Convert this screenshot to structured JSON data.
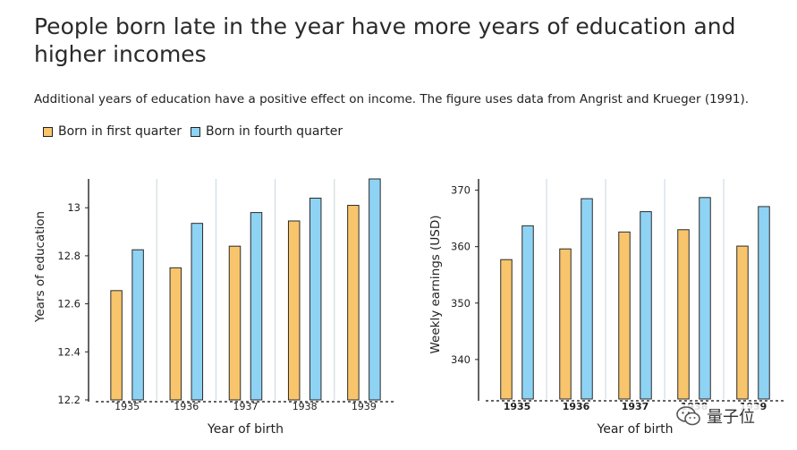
{
  "title": "People born late in the year have more years of education and higher incomes",
  "subtitle": "Additional years of education have a positive effect on income. The figure uses data from Angrist and Krueger (1991).",
  "legend": [
    {
      "label": "Born in first quarter",
      "color": "#f8c56c"
    },
    {
      "label": "Born in fourth quarter",
      "color": "#8fd3f4"
    }
  ],
  "watermark": {
    "text": "量子位",
    "icon": "wechat-icon"
  },
  "chart_data": [
    {
      "type": "bar",
      "categories": [
        "1935",
        "1936",
        "1937",
        "1938",
        "1939"
      ],
      "series": [
        {
          "name": "Born in first quarter",
          "values": [
            12.655,
            12.75,
            12.84,
            12.945,
            13.01
          ]
        },
        {
          "name": "Born in fourth quarter",
          "values": [
            12.825,
            12.935,
            12.98,
            13.04,
            13.12
          ]
        }
      ],
      "xlabel": "Year of birth",
      "ylabel": "Years of education",
      "ylim": [
        12.2,
        13.12
      ],
      "yticks": [
        "12.2",
        "12.4",
        "12.6",
        "12.8",
        "13"
      ],
      "grid": "vertical separators"
    },
    {
      "type": "bar",
      "categories": [
        "1935",
        "1936",
        "1937",
        "1938",
        "1939"
      ],
      "series": [
        {
          "name": "Born in first quarter",
          "values": [
            357.7,
            359.6,
            362.6,
            363.0,
            360.1
          ]
        },
        {
          "name": "Born in fourth quarter",
          "values": [
            363.7,
            368.5,
            366.2,
            368.7,
            367.1
          ]
        }
      ],
      "xlabel": "Year of birth",
      "ylabel": "Weekly earnings (USD)",
      "ylim": [
        333,
        372
      ],
      "yticks": [
        "340",
        "350",
        "360",
        "370"
      ],
      "grid": "vertical separators"
    }
  ]
}
